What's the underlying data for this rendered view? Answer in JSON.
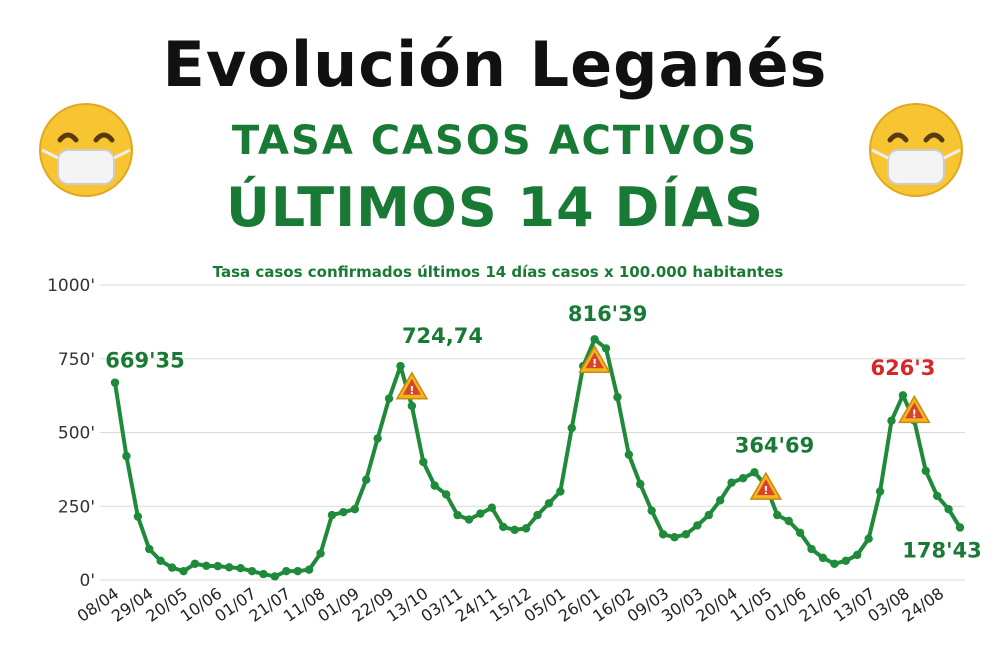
{
  "header": {
    "title": "Evolución Leganés",
    "subtitle_1": "TASA CASOS ACTIVOS",
    "subtitle_2": "ÚLTIMOS 14 DÍAS"
  },
  "icons": {
    "left": "face-with-medical-mask-icon",
    "right": "face-with-medical-mask-icon",
    "warning": "warning-triangle-icon"
  },
  "colors": {
    "line": "#1e8a3a",
    "title": "#111111",
    "green_text": "#197a36",
    "highlight": "#d62828"
  },
  "chart_data": {
    "type": "line",
    "title": "Tasa casos confirmados últimos 14 días  casos x 100.000 habitantes",
    "ylim": [
      0,
      1000
    ],
    "yticks": [
      0,
      250,
      500,
      750,
      1000
    ],
    "ytick_labels": [
      "0'",
      "250'",
      "500'",
      "750'",
      "1000'"
    ],
    "grid": true,
    "xtick_labels": [
      "08/04",
      "29/04",
      "20/05",
      "10/06",
      "01/07",
      "21/07",
      "11/08",
      "01/09",
      "22/09",
      "13/10",
      "03/11",
      "24/11",
      "15/12",
      "05/01",
      "26/01",
      "16/02",
      "09/03",
      "30/03",
      "20/04",
      "11/05",
      "01/06",
      "21/06",
      "13/07",
      "03/08",
      "24/08"
    ],
    "values": [
      669,
      420,
      215,
      105,
      65,
      42,
      30,
      55,
      48,
      47,
      43,
      40,
      30,
      20,
      12,
      30,
      30,
      35,
      90,
      220,
      230,
      240,
      340,
      480,
      615,
      725,
      590,
      400,
      320,
      290,
      220,
      205,
      225,
      245,
      180,
      170,
      175,
      220,
      260,
      300,
      515,
      725,
      816,
      785,
      620,
      425,
      325,
      235,
      155,
      145,
      155,
      185,
      220,
      270,
      330,
      345,
      365,
      320,
      220,
      200,
      160,
      105,
      75,
      55,
      65,
      85,
      140,
      300,
      540,
      626,
      540,
      370,
      285,
      240,
      178
    ],
    "annotations": [
      {
        "text": "669'35",
        "index": 0,
        "value": 669.35,
        "color": "#197a36"
      },
      {
        "text": "724,74",
        "index": 25,
        "value": 724.74,
        "color": "#197a36"
      },
      {
        "text": "816'39",
        "index": 42,
        "value": 816.39,
        "color": "#197a36"
      },
      {
        "text": "364'69",
        "index": 56,
        "value": 364.69,
        "color": "#197a36"
      },
      {
        "text": "626'3",
        "index": 69,
        "value": 626.3,
        "color": "#d62828"
      },
      {
        "text": "178'43",
        "index": 74,
        "value": 178.43,
        "color": "#197a36"
      }
    ],
    "warnings": [
      {
        "index": 26,
        "value": 655
      },
      {
        "index": 42,
        "value": 745
      },
      {
        "index": 57,
        "value": 315
      },
      {
        "index": 70,
        "value": 575
      }
    ]
  }
}
